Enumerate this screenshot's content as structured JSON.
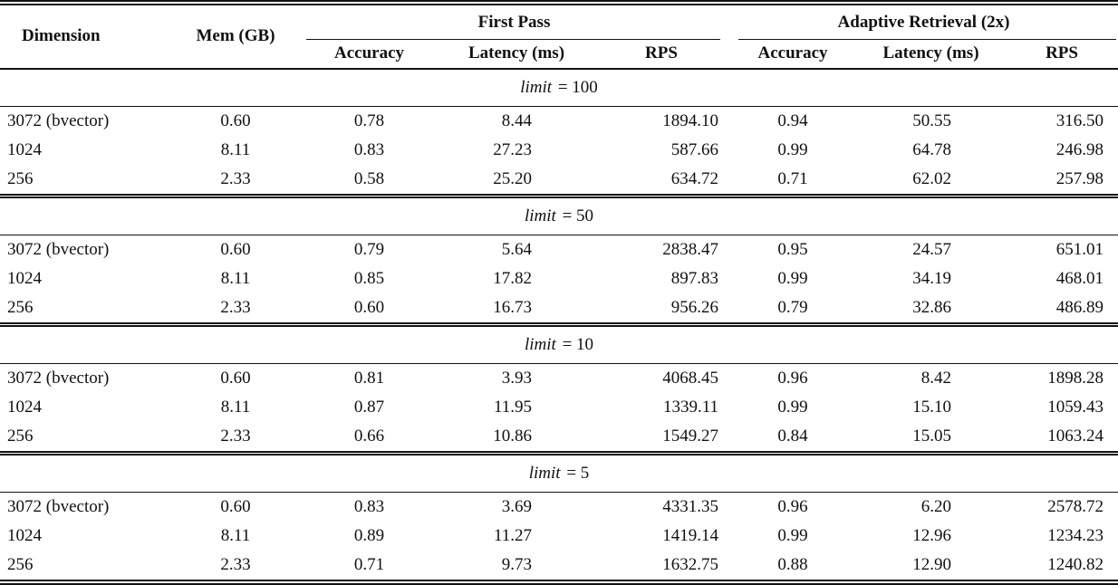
{
  "table": {
    "headers": {
      "dimension": "Dimension",
      "mem": "Mem (GB)",
      "first_pass": "First Pass",
      "adaptive_retrieval": "Adaptive Retrieval (2x)",
      "sub": [
        "Accuracy",
        "Latency (ms)",
        "RPS",
        "Accuracy",
        "Latency (ms)",
        "RPS"
      ]
    },
    "sections": [
      {
        "limit_var": "limit",
        "limit_value": "100",
        "rows": [
          [
            "3072 (bvector)",
            "0.60",
            "0.78",
            "8.44",
            "1894.10",
            "0.94",
            "50.55",
            "316.50"
          ],
          [
            "1024",
            "8.11",
            "0.83",
            "27.23",
            "587.66",
            "0.99",
            "64.78",
            "246.98"
          ],
          [
            "256",
            "2.33",
            "0.58",
            "25.20",
            "634.72",
            "0.71",
            "62.02",
            "257.98"
          ]
        ]
      },
      {
        "limit_var": "limit",
        "limit_value": "50",
        "rows": [
          [
            "3072 (bvector)",
            "0.60",
            "0.79",
            "5.64",
            "2838.47",
            "0.95",
            "24.57",
            "651.01"
          ],
          [
            "1024",
            "8.11",
            "0.85",
            "17.82",
            "897.83",
            "0.99",
            "34.19",
            "468.01"
          ],
          [
            "256",
            "2.33",
            "0.60",
            "16.73",
            "956.26",
            "0.79",
            "32.86",
            "486.89"
          ]
        ]
      },
      {
        "limit_var": "limit",
        "limit_value": "10",
        "rows": [
          [
            "3072 (bvector)",
            "0.60",
            "0.81",
            "3.93",
            "4068.45",
            "0.96",
            "8.42",
            "1898.28"
          ],
          [
            "1024",
            "8.11",
            "0.87",
            "11.95",
            "1339.11",
            "0.99",
            "15.10",
            "1059.43"
          ],
          [
            "256",
            "2.33",
            "0.66",
            "10.86",
            "1549.27",
            "0.84",
            "15.05",
            "1063.24"
          ]
        ]
      },
      {
        "limit_var": "limit",
        "limit_value": "5",
        "rows": [
          [
            "3072 (bvector)",
            "0.60",
            "0.83",
            "3.69",
            "4331.35",
            "0.96",
            "6.20",
            "2578.72"
          ],
          [
            "1024",
            "8.11",
            "0.89",
            "11.27",
            "1419.14",
            "0.99",
            "12.96",
            "1234.23"
          ],
          [
            "256",
            "2.33",
            "0.71",
            "9.73",
            "1632.75",
            "0.88",
            "12.90",
            "1240.82"
          ]
        ]
      }
    ]
  },
  "colors": {
    "text": "#111111",
    "rule": "#111111",
    "background": "#ffffff"
  }
}
